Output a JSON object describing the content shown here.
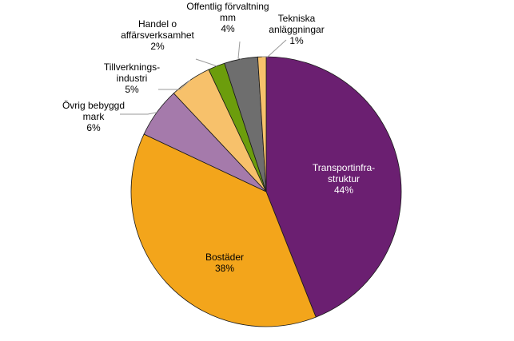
{
  "chart_data": {
    "type": "pie",
    "start_angle_deg": 0,
    "direction": "clockwise",
    "slices": [
      {
        "label_lines": [
          "Transportinfra-",
          "struktur"
        ],
        "value": 44,
        "display": "44%",
        "color": "#6b1f71",
        "label_inside": true,
        "label_color": "#ffffff"
      },
      {
        "label_lines": [
          "Bostäder"
        ],
        "value": 38,
        "display": "38%",
        "color": "#f3a51b",
        "label_inside": true,
        "label_color": "#000000"
      },
      {
        "label_lines": [
          "Övrig bebyggd",
          "mark"
        ],
        "value": 6,
        "display": "6%",
        "color": "#a57aab",
        "label_inside": false,
        "label_color": "#000000"
      },
      {
        "label_lines": [
          "Tillverknings-",
          "industri"
        ],
        "value": 5,
        "display": "5%",
        "color": "#f7c16b",
        "label_inside": false,
        "label_color": "#000000"
      },
      {
        "label_lines": [
          "Handel o",
          "affärsverksamhet"
        ],
        "value": 2,
        "display": "2%",
        "color": "#6c9d0c",
        "label_inside": false,
        "label_color": "#000000"
      },
      {
        "label_lines": [
          "Offentlig förvaltning",
          "mm"
        ],
        "value": 4,
        "display": "4%",
        "color": "#6e6e6e",
        "label_inside": false,
        "label_color": "#000000"
      },
      {
        "label_lines": [
          "Tekniska",
          "anläggningar"
        ],
        "value": 1,
        "display": "1%",
        "color": "#f7c16b",
        "label_inside": false,
        "label_color": "#000000"
      }
    ]
  }
}
